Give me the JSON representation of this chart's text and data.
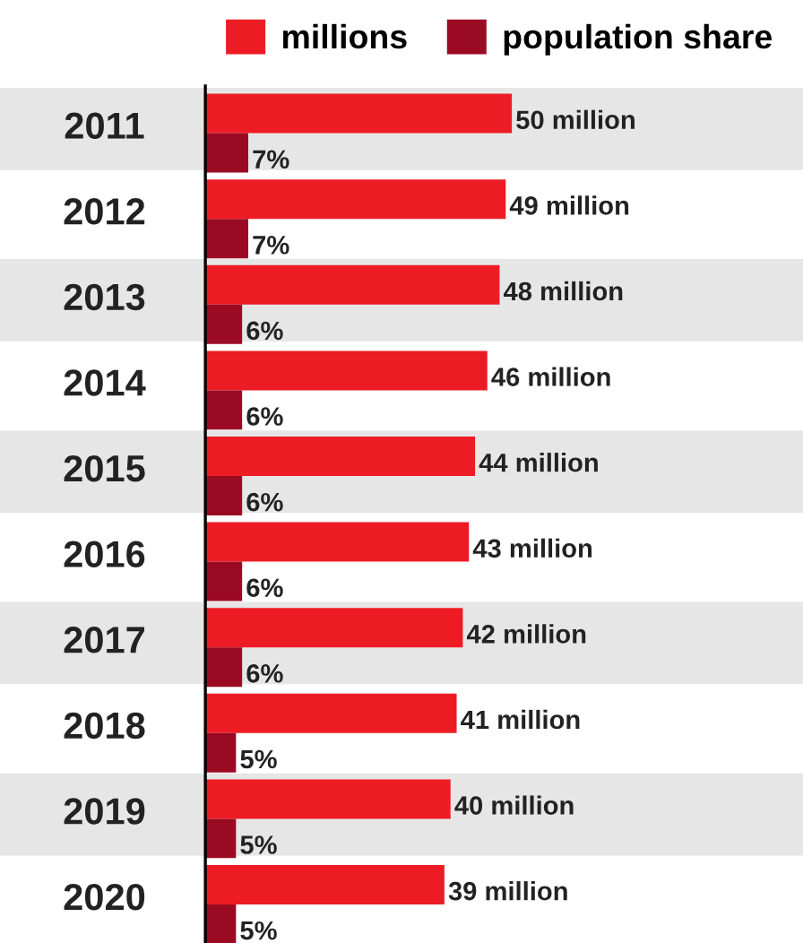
{
  "chart_data": {
    "type": "bar",
    "orientation": "horizontal",
    "data_labels": true,
    "legend": "top right",
    "categories": [
      "2011",
      "2012",
      "2013",
      "2014",
      "2015",
      "2016",
      "2017",
      "2018",
      "2019",
      "2020"
    ],
    "series": [
      {
        "name": "millions",
        "color": "#ed1c24",
        "values": [
          50,
          49,
          48,
          46,
          44,
          43,
          42,
          41,
          40,
          39
        ],
        "value_labels": [
          "50 million",
          "49 million",
          "48 million",
          "46 million",
          "44 million",
          "43 million",
          "42 million",
          "41 million",
          "40 million",
          "39 million"
        ]
      },
      {
        "name": "population share",
        "color": "#9b0a23",
        "values": [
          7,
          7,
          6,
          6,
          6,
          6,
          6,
          5,
          5,
          5
        ],
        "value_labels": [
          "7%",
          "7%",
          "6%",
          "6%",
          "6%",
          "6%",
          "6%",
          "5%",
          "5%",
          "5%"
        ]
      }
    ]
  }
}
